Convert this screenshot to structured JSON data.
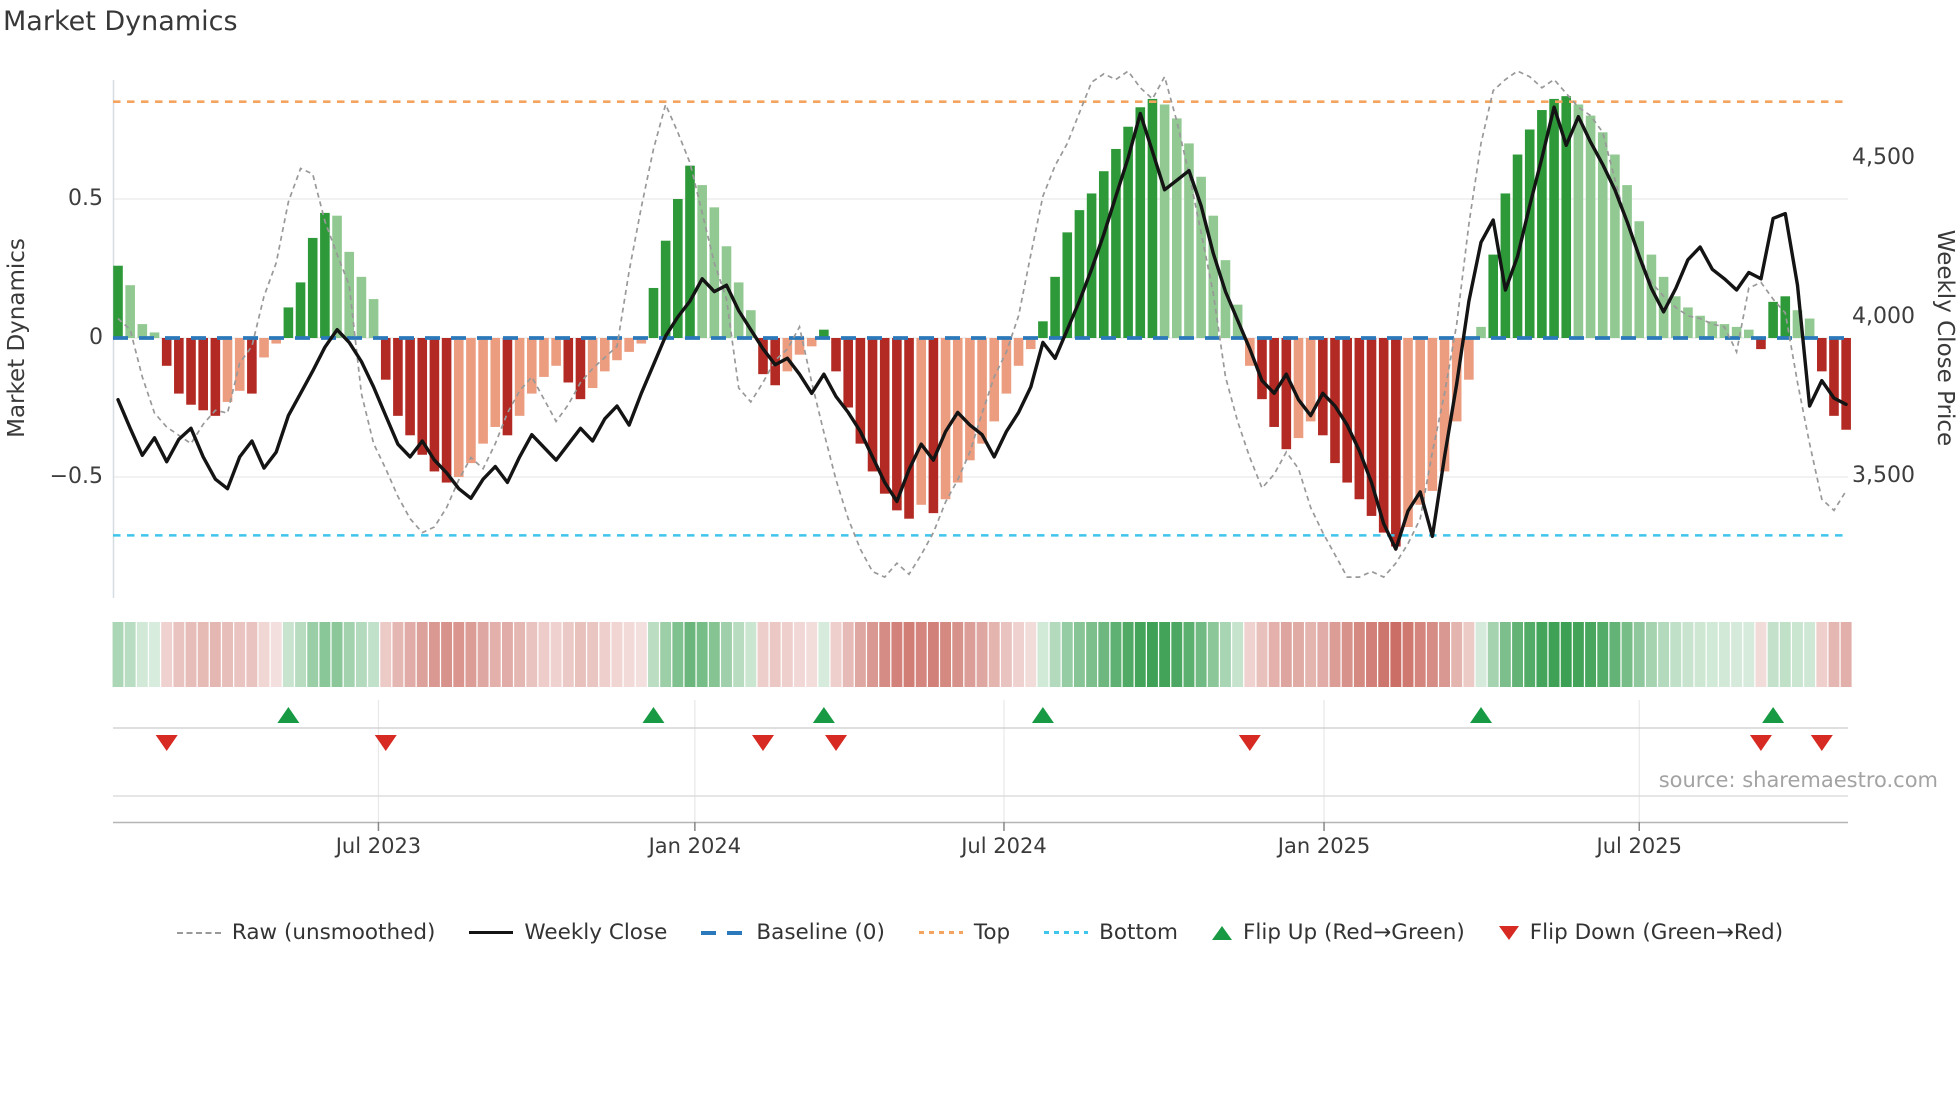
{
  "title": "Market Dynamics",
  "source": "source: sharemaestro.com",
  "left_axis": {
    "label": "Market Dynamics",
    "ticks": [
      "0.5",
      "0",
      "−0.5"
    ],
    "tick_values": [
      0.5,
      0,
      -0.5
    ]
  },
  "right_axis": {
    "label": "Weekly Close Price",
    "ticks": [
      "4,500",
      "4,000",
      "3,500"
    ],
    "tick_values": [
      4500,
      4000,
      3500
    ]
  },
  "x_axis": {
    "ticks": [
      {
        "label": "Jul 2023",
        "pos": 21.4
      },
      {
        "label": "Jan 2024",
        "pos": 47.4
      },
      {
        "label": "Jul 2024",
        "pos": 72.8
      },
      {
        "label": "Jan 2025",
        "pos": 99.1
      },
      {
        "label": "Jul 2025",
        "pos": 125.0
      }
    ]
  },
  "legend": [
    {
      "label": "Raw (unsmoothed)",
      "swatch": "dash-gray"
    },
    {
      "label": "Weekly Close",
      "swatch": "line-black"
    },
    {
      "label": "Baseline (0)",
      "swatch": "dash-blue"
    },
    {
      "label": "Top",
      "swatch": "dot-orange"
    },
    {
      "label": "Bottom",
      "swatch": "dot-cyan"
    },
    {
      "label": "Flip Up (Red→Green)",
      "swatch": "tri-up"
    },
    {
      "label": "Flip Down (Green→Red)",
      "swatch": "tri-down"
    }
  ],
  "colors": {
    "bar_green_strong": "#2e9939",
    "bar_green_soft": "#92c992",
    "bar_red_strong": "#b22a23",
    "bar_red_soft": "#ec9d80",
    "weekly_close": "#141414",
    "raw_line": "#999999",
    "baseline": "#2b79ba",
    "top_line": "#f4a45f",
    "bottom_line": "#3fc4ec",
    "flip_up": "#189a44",
    "flip_down": "#d62a22",
    "heat_green": "#3ca054",
    "heat_red": "#c45c52",
    "grid": "#ebebeb",
    "spine": "#d6dce4"
  },
  "chart_data": {
    "type": "combo (weekly oscillator bars + raw dashed line + weekly close line + heatmap strip + flip markers)",
    "title": "Market Dynamics",
    "x_unit": "weeks",
    "n_weeks": 143,
    "x_range_labels": [
      "Jul 2023",
      "Jan 2024",
      "Jul 2024",
      "Jan 2025",
      "Jul 2025"
    ],
    "osc_ylim": [
      -0.93,
      0.93
    ],
    "price_ylim": [
      3105,
      4755
    ],
    "baseline": 0,
    "top_line": 0.85,
    "bottom_line": -0.71,
    "osc_bars": [
      0.26,
      0.19,
      0.05,
      0.02,
      -0.1,
      -0.2,
      -0.24,
      -0.26,
      -0.28,
      -0.23,
      -0.19,
      -0.2,
      -0.07,
      -0.02,
      0.11,
      0.2,
      0.36,
      0.45,
      0.44,
      0.31,
      0.22,
      0.14,
      -0.15,
      -0.28,
      -0.35,
      -0.42,
      -0.48,
      -0.52,
      -0.5,
      -0.45,
      -0.38,
      -0.32,
      -0.35,
      -0.28,
      -0.2,
      -0.14,
      -0.1,
      -0.16,
      -0.22,
      -0.18,
      -0.12,
      -0.08,
      -0.05,
      -0.02,
      0.18,
      0.35,
      0.5,
      0.62,
      0.55,
      0.47,
      0.33,
      0.2,
      0.1,
      -0.13,
      -0.17,
      -0.12,
      -0.06,
      -0.03,
      0.03,
      -0.12,
      -0.25,
      -0.38,
      -0.48,
      -0.56,
      -0.62,
      -0.65,
      -0.6,
      -0.63,
      -0.58,
      -0.52,
      -0.44,
      -0.38,
      -0.3,
      -0.2,
      -0.1,
      -0.04,
      0.06,
      0.22,
      0.38,
      0.46,
      0.52,
      0.6,
      0.68,
      0.76,
      0.83,
      0.86,
      0.84,
      0.79,
      0.7,
      0.58,
      0.44,
      0.28,
      0.12,
      -0.1,
      -0.22,
      -0.32,
      -0.4,
      -0.36,
      -0.3,
      -0.35,
      -0.45,
      -0.52,
      -0.58,
      -0.64,
      -0.7,
      -0.75,
      -0.68,
      -0.6,
      -0.55,
      -0.48,
      -0.3,
      -0.15,
      0.04,
      0.3,
      0.52,
      0.66,
      0.75,
      0.82,
      0.86,
      0.87,
      0.84,
      0.8,
      0.74,
      0.66,
      0.55,
      0.42,
      0.3,
      0.22,
      0.15,
      0.11,
      0.08,
      0.06,
      0.05,
      0.04,
      0.03,
      -0.04,
      0.13,
      0.15,
      0.1,
      0.07,
      -0.12,
      -0.28,
      -0.33
    ],
    "raw_osc_line": [
      0.07,
      0.03,
      -0.14,
      -0.27,
      -0.32,
      -0.35,
      -0.38,
      -0.31,
      -0.26,
      -0.27,
      -0.09,
      -0.03,
      0.15,
      0.27,
      0.49,
      0.61,
      0.59,
      0.42,
      0.3,
      0.19,
      -0.2,
      -0.38,
      -0.47,
      -0.57,
      -0.65,
      -0.7,
      -0.68,
      -0.61,
      -0.51,
      -0.43,
      -0.47,
      -0.38,
      -0.27,
      -0.19,
      -0.14,
      -0.22,
      -0.3,
      -0.24,
      -0.16,
      -0.11,
      -0.07,
      -0.03,
      0.24,
      0.47,
      0.68,
      0.84,
      0.74,
      0.63,
      0.45,
      0.27,
      0.14,
      -0.18,
      -0.23,
      -0.16,
      -0.08,
      -0.04,
      0.04,
      -0.16,
      -0.34,
      -0.51,
      -0.65,
      -0.76,
      -0.84,
      -0.86,
      -0.81,
      -0.85,
      -0.78,
      -0.7,
      -0.59,
      -0.51,
      -0.41,
      -0.27,
      -0.14,
      -0.05,
      0.08,
      0.3,
      0.51,
      0.62,
      0.7,
      0.81,
      0.92,
      0.95,
      0.93,
      0.96,
      0.9,
      0.86,
      0.94,
      0.78,
      0.59,
      0.38,
      0.16,
      -0.14,
      -0.3,
      -0.43,
      -0.54,
      -0.49,
      -0.41,
      -0.47,
      -0.61,
      -0.7,
      -0.78,
      -0.86,
      -0.86,
      -0.84,
      -0.86,
      -0.81,
      -0.74,
      -0.65,
      -0.41,
      -0.2,
      0.05,
      0.41,
      0.7,
      0.89,
      0.93,
      0.96,
      0.94,
      0.9,
      0.93,
      0.88,
      0.83,
      0.8,
      0.74,
      0.57,
      0.41,
      0.3,
      0.2,
      0.15,
      0.11,
      0.08,
      0.07,
      0.05,
      0.04,
      -0.05,
      0.18,
      0.2,
      0.14,
      0.09,
      -0.16,
      -0.38,
      -0.58,
      -0.62,
      -0.55
    ],
    "weekly_close_line": [
      3740,
      3650,
      3565,
      3620,
      3545,
      3615,
      3650,
      3560,
      3490,
      3460,
      3560,
      3610,
      3525,
      3575,
      3690,
      3760,
      3830,
      3905,
      3960,
      3920,
      3860,
      3780,
      3690,
      3600,
      3560,
      3610,
      3550,
      3510,
      3460,
      3430,
      3490,
      3530,
      3480,
      3560,
      3630,
      3590,
      3550,
      3600,
      3650,
      3610,
      3680,
      3720,
      3660,
      3760,
      3850,
      3940,
      4000,
      4050,
      4120,
      4080,
      4100,
      4020,
      3960,
      3900,
      3850,
      3870,
      3820,
      3760,
      3820,
      3750,
      3700,
      3640,
      3560,
      3480,
      3420,
      3520,
      3600,
      3550,
      3640,
      3700,
      3660,
      3630,
      3560,
      3640,
      3700,
      3780,
      3920,
      3870,
      3960,
      4050,
      4150,
      4260,
      4380,
      4500,
      4640,
      4520,
      4400,
      4430,
      4460,
      4350,
      4200,
      4080,
      3990,
      3900,
      3800,
      3760,
      3820,
      3740,
      3690,
      3760,
      3720,
      3660,
      3580,
      3480,
      3350,
      3270,
      3390,
      3450,
      3310,
      3560,
      3790,
      4050,
      4235,
      4305,
      4085,
      4190,
      4350,
      4500,
      4660,
      4540,
      4630,
      4550,
      4480,
      4400,
      4300,
      4190,
      4090,
      4016,
      4090,
      4180,
      4220,
      4150,
      4120,
      4085,
      4140,
      4120,
      4310,
      4325,
      4100,
      3720,
      3800,
      3745,
      3725
    ],
    "flip_up_weeks": [
      14,
      44,
      58,
      76,
      112,
      136
    ],
    "flip_down_weeks": [
      4,
      22,
      53,
      59,
      93,
      135,
      140
    ],
    "legend_entries": [
      "Raw (unsmoothed)",
      "Weekly Close",
      "Baseline (0)",
      "Top",
      "Bottom",
      "Flip Up (Red→Green)",
      "Flip Down (Green→Red)"
    ],
    "grid": "horizontal only in main panel; vertical tick lines in marker panel",
    "legend_position": "bottom center"
  }
}
